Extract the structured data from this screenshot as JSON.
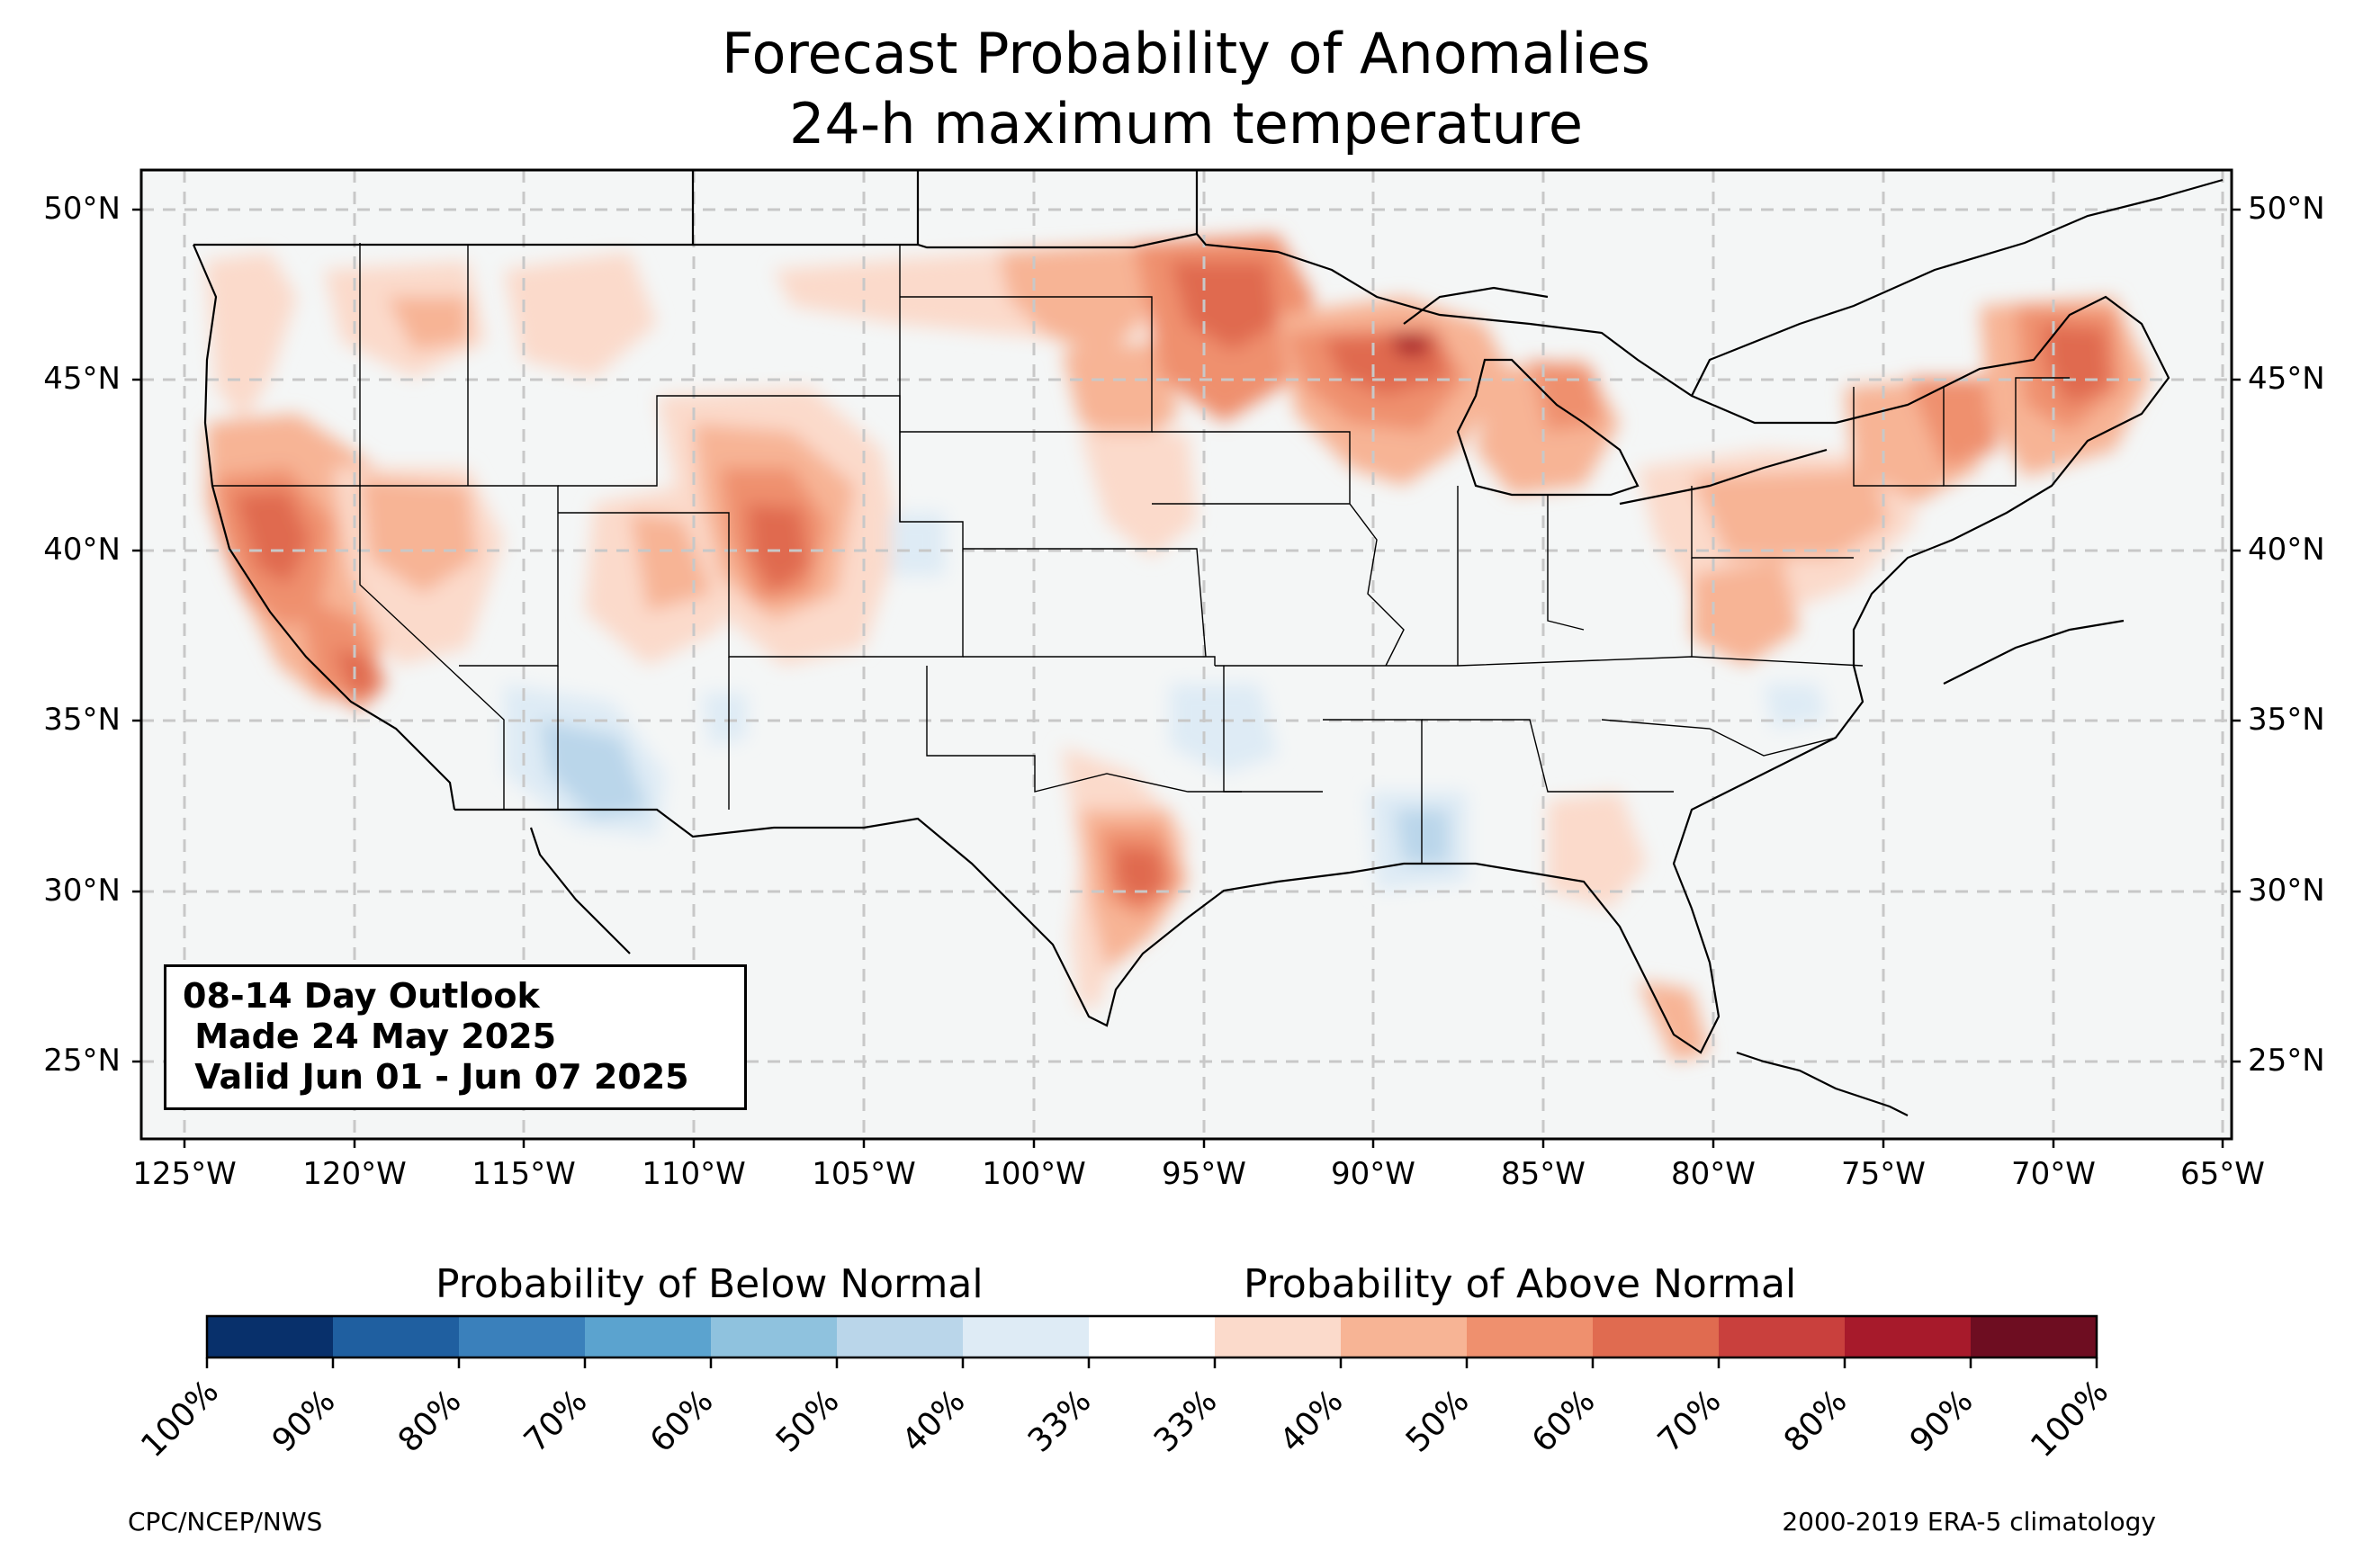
{
  "title": {
    "line1": "Forecast Probability of Anomalies",
    "line2": "24-h maximum temperature"
  },
  "map": {
    "lat_labels": [
      "50°N",
      "45°N",
      "40°N",
      "35°N",
      "30°N",
      "25°N"
    ],
    "lon_labels": [
      "125°W",
      "120°W",
      "115°W",
      "110°W",
      "105°W",
      "100°W",
      "95°W",
      "90°W",
      "85°W",
      "80°W",
      "75°W",
      "70°W",
      "65°W"
    ],
    "extent": {
      "lon_min": -126.3,
      "lon_max": -64.8,
      "lat_min": 22.8,
      "lat_max": 51.2
    },
    "gridlines": true,
    "background_color": "#f4f6f6"
  },
  "outlook": {
    "line1": "08-14 Day Outlook",
    "line2": " Made 24 May 2025",
    "line3": " Valid Jun 01 - Jun 07 2025"
  },
  "colorbar": {
    "below_title": "Probability of Below Normal",
    "above_title": "Probability of Above Normal",
    "tick_labels": [
      "100%",
      "90%",
      "80%",
      "70%",
      "60%",
      "50%",
      "40%",
      "33%",
      "33%",
      "40%",
      "50%",
      "60%",
      "70%",
      "80%",
      "90%",
      "100%"
    ],
    "colors": [
      "#08306b",
      "#1f5fa0",
      "#3a80bb",
      "#5ba3cf",
      "#8fc2de",
      "#bad6ea",
      "#deebf5",
      "#ffffff",
      "#fbdacb",
      "#f7b495",
      "#ef906e",
      "#e06b50",
      "#c9403d",
      "#a71a2b",
      "#6e0d21"
    ]
  },
  "footer": {
    "credit": "CPC/NCEP/NWS",
    "climatology": "2000-2019 ERA-5 climatology"
  }
}
